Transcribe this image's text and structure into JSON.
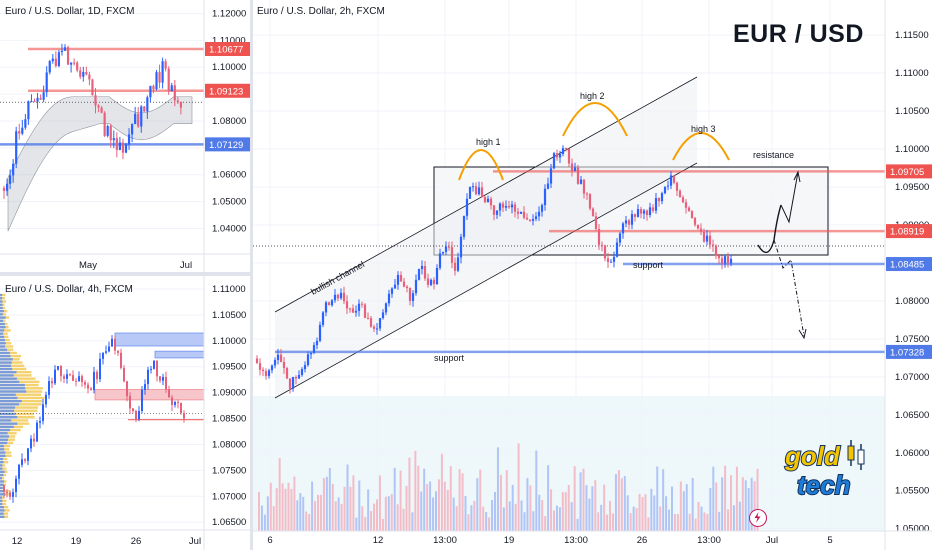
{
  "colors": {
    "up": "#2962ff",
    "down": "#e8617a",
    "red_line": "#ef5350",
    "blue_line": "#4f7ae8",
    "orange": "#f59f00",
    "bg_panel": "#eef8fa"
  },
  "watermark": {
    "line1": "gold",
    "line2": "tech",
    "icon": "candlestick-icon",
    "colors": [
      "#f5c400",
      "#1e7bd6"
    ]
  },
  "badge": {
    "icon": "lightning-icon"
  },
  "charts": [
    {
      "id": "daily",
      "title": "Euro / U.S. Dollar, 1D, FXCM",
      "y_ticks": [
        "1.12000",
        "1.11000",
        "1.10000",
        "1.09000",
        "1.08000",
        "1.07000",
        "1.06000",
        "1.05000",
        "1.04000"
      ],
      "x_labels": [
        "May",
        "Jul"
      ],
      "price_tags": [
        {
          "value": 1.10677,
          "label": "1.10677",
          "kind": "resistance"
        },
        {
          "value": 1.09123,
          "label": "1.09123",
          "kind": "current"
        },
        {
          "value": 1.07129,
          "label": "1.07129",
          "kind": "support"
        }
      ]
    },
    {
      "id": "four_hour",
      "title": "Euro / U.S. Dollar, 4h, FXCM",
      "y_ticks": [
        "1.11000",
        "1.10500",
        "1.10000",
        "1.09500",
        "1.09000",
        "1.08500",
        "1.08000",
        "1.07500",
        "1.07000",
        "1.06500"
      ],
      "x_labels": [
        "12",
        "19",
        "26",
        "Jul"
      ]
    },
    {
      "id": "two_hour",
      "title": "Euro / U.S. Dollar, 2h, FXCM",
      "headline": "EUR / USD",
      "type": "candlestick",
      "y_ticks": [
        "1.11500",
        "1.11000",
        "1.10500",
        "1.10000",
        "1.09500",
        "1.09000",
        "1.08500",
        "1.08000",
        "1.07500",
        "1.07000",
        "1.06500",
        "1.06000",
        "1.05500",
        "1.05000"
      ],
      "y_range": [
        1.0497,
        1.1183
      ],
      "x_labels": [
        "6",
        "12",
        "13:00",
        "19",
        "13:00",
        "26",
        "13:00",
        "Jul",
        "5"
      ],
      "price_tags": [
        {
          "value": 1.09705,
          "label": "1.09705",
          "kind": "resistance"
        },
        {
          "value": 1.08919,
          "label": "1.08919",
          "kind": "resistance"
        },
        {
          "value": 1.08485,
          "label": "1.08485",
          "kind": "support"
        },
        {
          "value": 1.07328,
          "label": "1.07328",
          "kind": "support"
        }
      ],
      "annotations": {
        "high_1": "high 1",
        "high_2": "high 2",
        "high_3": "high 3",
        "resistance": "resistance",
        "support_upper": "support",
        "support_lower": "support",
        "bullish_channel": "bullish channel"
      }
    }
  ]
}
